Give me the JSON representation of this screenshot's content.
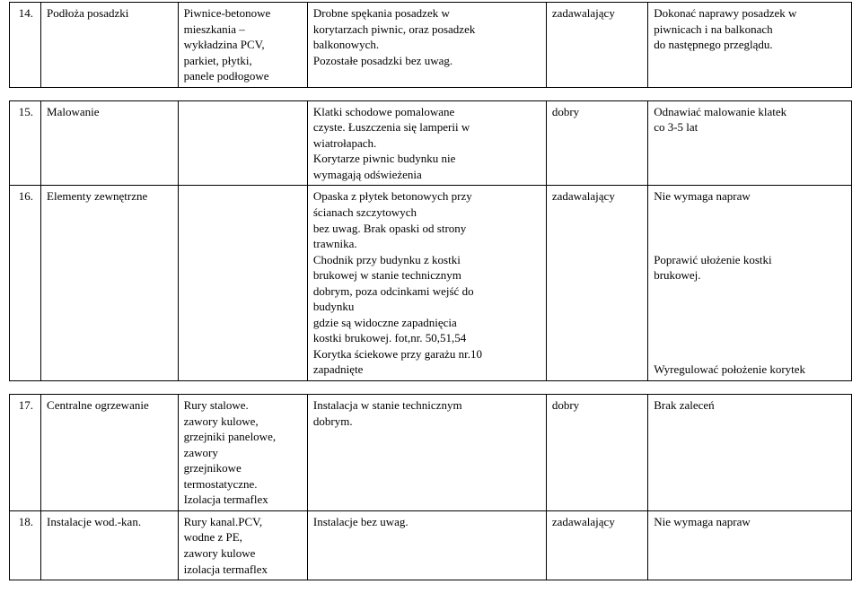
{
  "tables": {
    "t1": {
      "rows": [
        {
          "num": "14.",
          "c2": "Podłoża posadzki",
          "c3": "Piwnice-betonowe\nmieszkania –\nwykładzina PCV,\nparkiet, płytki,\npanele podłogowe",
          "c4": "Drobne spękania posadzek w\nkorytarzach piwnic, oraz posadzek\nbalkonowych.\nPozostałe posadzki bez uwag.",
          "c5": "zadawalający",
          "c6": "Dokonać naprawy posadzek w\npiwnicach i na balkonach\ndo następnego przeglądu."
        }
      ]
    },
    "t2": {
      "rows": [
        {
          "num": "15.",
          "c2": "Malowanie",
          "c3": "",
          "c4": "Klatki schodowe pomalowane\nczyste. Łuszczenia się lamperii w\nwiatrołapach.\nKorytarze piwnic budynku nie\nwymagają odświeżenia",
          "c5": "dobry",
          "c6": "Odnawiać malowanie klatek\nco 3-5 lat"
        },
        {
          "num": "16.",
          "c2": "Elementy zewnętrzne",
          "c3": "",
          "c4": "Opaska z płytek betonowych przy\nścianach szczytowych\nbez uwag. Brak opaski od strony\ntrawnika.\nChodnik przy budynku z kostki\nbrukowej w stanie technicznym\ndobrym, poza odcinkami wejść do\nbudynku\ngdzie są widoczne zapadnięcia\nkostki brukowej. fot,nr. 50,51,54\nKorytka ściekowe przy garażu nr.10\nzapadnięte",
          "c5": "zadawalający",
          "c6": "Nie wymaga napraw\n\n\n\nPoprawić ułożenie kostki\nbrukowej.\n\n\n\n\n\nWyregulować położenie korytek"
        }
      ]
    },
    "t3": {
      "rows": [
        {
          "num": "17.",
          "c2": "Centralne ogrzewanie",
          "c3": "Rury stalowe.\nzawory kulowe,\ngrzejniki panelowe,\nzawory\ngrzejnikowe\ntermostatyczne.\nIzolacja termaflex",
          "c4": "Instalacja w stanie technicznym\ndobrym.",
          "c5": "dobry",
          "c6": "Brak zaleceń"
        },
        {
          "num": "18.",
          "c2": "Instalacje wod.-kan.",
          "c3": "Rury kanal.PCV,\nwodne z PE,\nzawory kulowe\nizolacja termaflex",
          "c4": "Instalacje bez uwag.",
          "c5": "zadawalający",
          "c6": "Nie wymaga napraw"
        }
      ]
    }
  }
}
